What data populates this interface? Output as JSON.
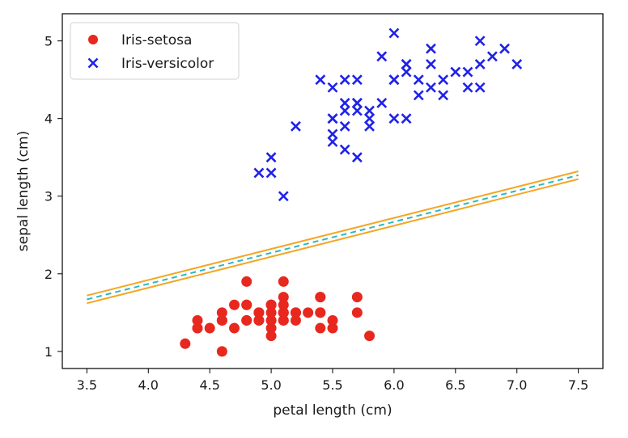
{
  "chart_data": {
    "type": "scatter",
    "xlabel": "petal length (cm)",
    "ylabel": "sepal length (cm)",
    "xlim": [
      3.3,
      7.7
    ],
    "ylim": [
      0.78,
      5.35
    ],
    "x_ticks": [
      "3.5",
      "4.0",
      "4.5",
      "5.0",
      "5.5",
      "6.0",
      "6.5",
      "7.0",
      "7.5"
    ],
    "y_ticks": [
      "1",
      "2",
      "3",
      "4",
      "5"
    ],
    "grid": false,
    "legend_position": "top-left",
    "series": [
      {
        "name": "Iris-setosa",
        "marker": "circle",
        "color": "#e8281e",
        "points": [
          [
            5.1,
            1.4
          ],
          [
            4.9,
            1.4
          ],
          [
            4.7,
            1.3
          ],
          [
            4.6,
            1.5
          ],
          [
            5.0,
            1.4
          ],
          [
            5.4,
            1.7
          ],
          [
            4.6,
            1.4
          ],
          [
            5.0,
            1.5
          ],
          [
            4.4,
            1.4
          ],
          [
            4.9,
            1.5
          ],
          [
            5.4,
            1.5
          ],
          [
            4.8,
            1.6
          ],
          [
            4.8,
            1.4
          ],
          [
            4.3,
            1.1
          ],
          [
            5.8,
            1.2
          ],
          [
            5.7,
            1.5
          ],
          [
            5.4,
            1.3
          ],
          [
            5.1,
            1.4
          ],
          [
            5.7,
            1.7
          ],
          [
            5.1,
            1.5
          ],
          [
            5.4,
            1.7
          ],
          [
            5.1,
            1.5
          ],
          [
            4.6,
            1.0
          ],
          [
            5.1,
            1.7
          ],
          [
            4.8,
            1.9
          ],
          [
            5.0,
            1.6
          ],
          [
            5.0,
            1.6
          ],
          [
            5.2,
            1.5
          ],
          [
            5.2,
            1.4
          ],
          [
            4.7,
            1.6
          ],
          [
            4.8,
            1.6
          ],
          [
            5.4,
            1.5
          ],
          [
            5.2,
            1.5
          ],
          [
            5.5,
            1.4
          ],
          [
            4.9,
            1.5
          ],
          [
            5.0,
            1.2
          ],
          [
            5.5,
            1.3
          ],
          [
            4.9,
            1.4
          ],
          [
            4.4,
            1.3
          ],
          [
            5.1,
            1.5
          ],
          [
            5.0,
            1.3
          ],
          [
            4.5,
            1.3
          ],
          [
            4.4,
            1.3
          ],
          [
            5.0,
            1.6
          ],
          [
            5.1,
            1.9
          ],
          [
            4.8,
            1.4
          ],
          [
            5.1,
            1.6
          ],
          [
            4.6,
            1.4
          ],
          [
            5.3,
            1.5
          ],
          [
            5.0,
            1.4
          ]
        ]
      },
      {
        "name": "Iris-versicolor",
        "marker": "x",
        "color": "#1f22e8",
        "points": [
          [
            7.0,
            4.7
          ],
          [
            6.4,
            4.5
          ],
          [
            6.9,
            4.9
          ],
          [
            5.5,
            4.0
          ],
          [
            6.5,
            4.6
          ],
          [
            5.7,
            4.5
          ],
          [
            6.3,
            4.7
          ],
          [
            4.9,
            3.3
          ],
          [
            6.6,
            4.6
          ],
          [
            5.2,
            3.9
          ],
          [
            5.0,
            3.5
          ],
          [
            5.9,
            4.2
          ],
          [
            6.0,
            4.0
          ],
          [
            6.1,
            4.7
          ],
          [
            5.6,
            3.6
          ],
          [
            6.7,
            4.4
          ],
          [
            5.6,
            4.5
          ],
          [
            5.8,
            4.1
          ],
          [
            6.2,
            4.5
          ],
          [
            5.6,
            3.9
          ],
          [
            5.9,
            4.8
          ],
          [
            6.1,
            4.0
          ],
          [
            6.3,
            4.9
          ],
          [
            6.1,
            4.7
          ],
          [
            6.4,
            4.3
          ],
          [
            6.6,
            4.4
          ],
          [
            6.8,
            4.8
          ],
          [
            6.7,
            5.0
          ],
          [
            6.0,
            4.5
          ],
          [
            5.7,
            3.5
          ],
          [
            5.5,
            3.8
          ],
          [
            5.5,
            3.7
          ],
          [
            5.8,
            3.9
          ],
          [
            6.0,
            5.1
          ],
          [
            5.4,
            4.5
          ],
          [
            6.0,
            4.5
          ],
          [
            6.7,
            4.7
          ],
          [
            6.3,
            4.4
          ],
          [
            5.6,
            4.1
          ],
          [
            5.5,
            4.0
          ],
          [
            5.5,
            4.4
          ],
          [
            6.1,
            4.6
          ],
          [
            5.8,
            4.0
          ],
          [
            5.0,
            3.3
          ],
          [
            5.6,
            4.2
          ],
          [
            5.7,
            4.2
          ],
          [
            5.7,
            4.2
          ],
          [
            6.2,
            4.3
          ],
          [
            5.1,
            3.0
          ],
          [
            5.7,
            4.1
          ]
        ]
      }
    ],
    "lines": [
      {
        "style": "dashed",
        "color": "#2cb8c4",
        "slope": 0.4,
        "intercept": 0.27
      },
      {
        "style": "solid",
        "color": "#f5a623",
        "slope": 0.4,
        "intercept": 0.32
      },
      {
        "style": "solid",
        "color": "#f5a623",
        "slope": 0.4,
        "intercept": 0.22
      }
    ]
  }
}
